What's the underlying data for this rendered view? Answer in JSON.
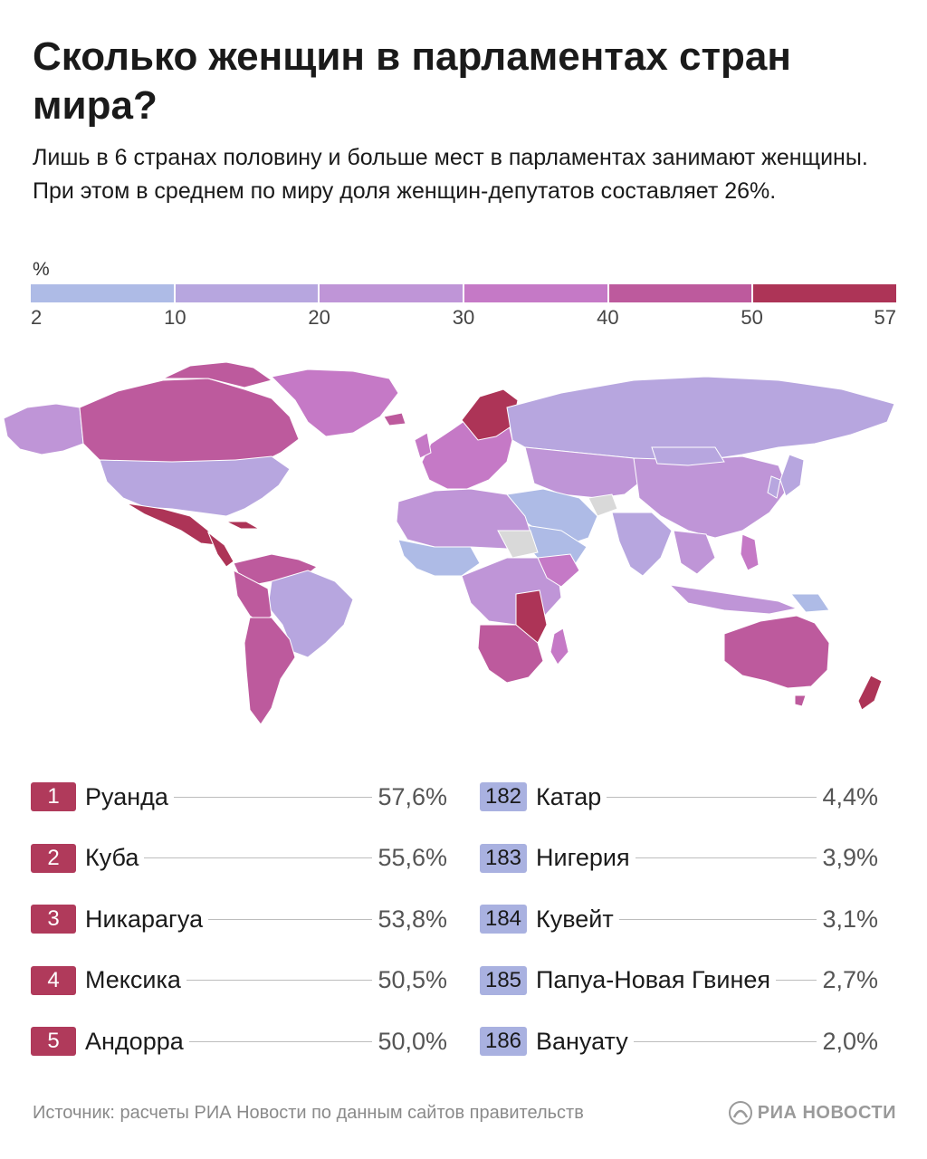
{
  "title": "Сколько женщин в парламентах стран мира?",
  "subtitle": "Лишь в 6 странах половину и больше мест в парламентах занимают женщины. При этом в среднем по миру доля женщин-депутатов составляет 26%.",
  "legend": {
    "unit": "%",
    "ticks": [
      "2",
      "10",
      "20",
      "30",
      "40",
      "50",
      "57"
    ],
    "colors": [
      "#aebbe6",
      "#b7a6df",
      "#bf95d7",
      "#c579c6",
      "#bd5a9d",
      "#ad3457"
    ]
  },
  "colors": {
    "ocean": "#ffffff",
    "no_data": "#d9d9d9",
    "top_badge": "#b03a5b",
    "bottom_badge": "#a9b1e0"
  },
  "top_ranking": [
    {
      "rank": "1",
      "country": "Руанда",
      "value": "57,6%"
    },
    {
      "rank": "2",
      "country": "Куба",
      "value": "55,6%"
    },
    {
      "rank": "3",
      "country": "Никарагуа",
      "value": "53,8%"
    },
    {
      "rank": "4",
      "country": "Мексика",
      "value": "50,5%"
    },
    {
      "rank": "5",
      "country": "Андорра",
      "value": "50,0%"
    }
  ],
  "bottom_ranking": [
    {
      "rank": "182",
      "country": "Катар",
      "value": "4,4%"
    },
    {
      "rank": "183",
      "country": "Нигерия",
      "value": "3,9%"
    },
    {
      "rank": "184",
      "country": "Кувейт",
      "value": "3,1%"
    },
    {
      "rank": "185",
      "country": "Папуа-Новая Гвинея",
      "value": "2,7%"
    },
    {
      "rank": "186",
      "country": "Вануату",
      "value": "2,0%"
    }
  ],
  "source": "Источник: расчеты РИА Новости по данным сайтов правительств",
  "brand": "РИА НОВОСТИ",
  "brand_icon": "ria-logo-icon"
}
